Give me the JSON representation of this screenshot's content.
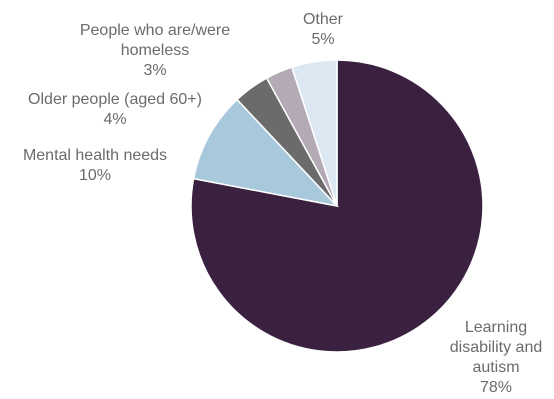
{
  "chart_data": {
    "type": "pie",
    "title": "",
    "start_angle_deg": 0,
    "direction": "clockwise",
    "slices": [
      {
        "label_lines": [
          "Learning",
          "disability and",
          "autism"
        ],
        "value": 78,
        "value_label": "78%",
        "color": "#3b2140"
      },
      {
        "label_lines": [
          "Mental health needs"
        ],
        "value": 10,
        "value_label": "10%",
        "color": "#a8c8dc"
      },
      {
        "label_lines": [
          "Older people (aged 60+)"
        ],
        "value": 4,
        "value_label": "4%",
        "color": "#6b6b6b"
      },
      {
        "label_lines": [
          "People who are/were",
          "homeless"
        ],
        "value": 3,
        "value_label": "3%",
        "color": "#b3aab6"
      },
      {
        "label_lines": [
          "Other"
        ],
        "value": 5,
        "value_label": "5%",
        "color": "#dce8f1"
      }
    ]
  }
}
